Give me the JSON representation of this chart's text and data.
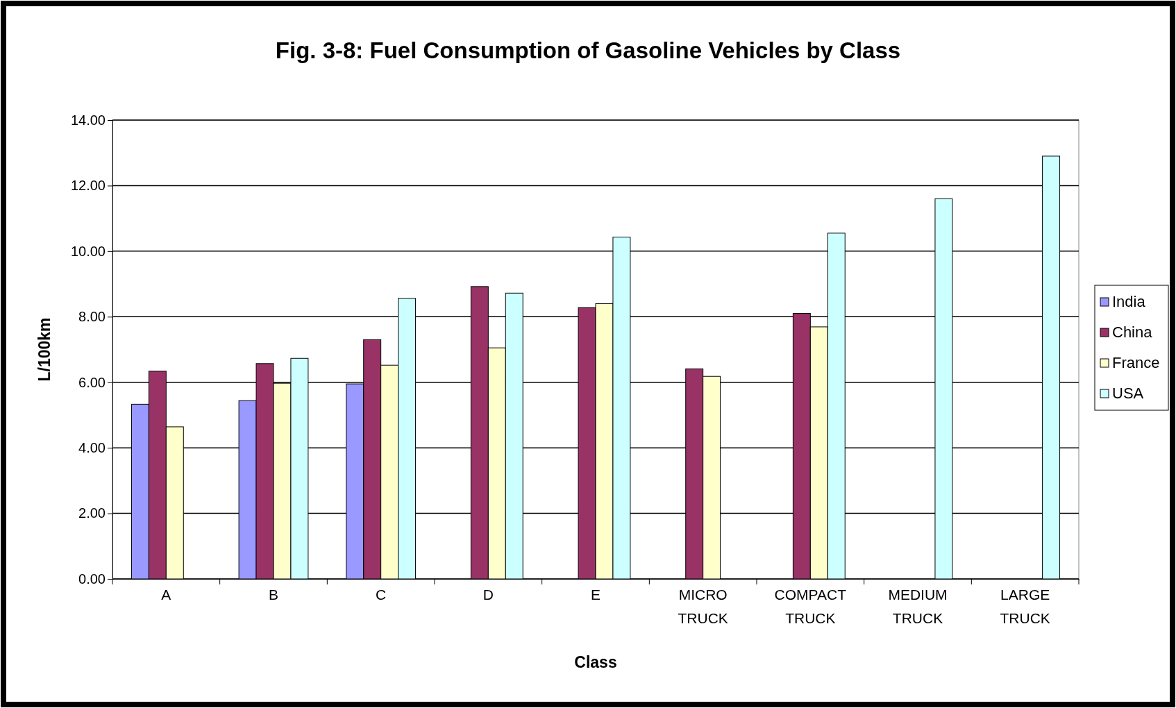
{
  "chart_data": {
    "type": "bar",
    "title": "Fig. 3-8: Fuel Consumption of Gasoline Vehicles by Class",
    "xlabel": "Class",
    "ylabel": "L/100km",
    "categories": [
      "A",
      "B",
      "C",
      "D",
      "E",
      "MICRO TRUCK",
      "COMPACT TRUCK",
      "MEDIUM TRUCK",
      "LARGE TRUCK"
    ],
    "series": [
      {
        "name": "India",
        "color": "#9999ff",
        "values": [
          5.33,
          5.44,
          5.95,
          null,
          null,
          null,
          null,
          null,
          null
        ]
      },
      {
        "name": "China",
        "color": "#993366",
        "values": [
          6.34,
          6.57,
          7.3,
          8.92,
          8.28,
          6.41,
          8.1,
          null,
          null
        ]
      },
      {
        "name": "France",
        "color": "#ffffcc",
        "values": [
          4.64,
          5.97,
          6.52,
          7.05,
          8.4,
          6.18,
          7.69,
          null,
          null
        ]
      },
      {
        "name": "USA",
        "color": "#ccffff",
        "values": [
          null,
          6.73,
          8.56,
          8.72,
          10.43,
          null,
          10.55,
          11.6,
          12.9
        ]
      }
    ],
    "ylim": [
      0,
      14
    ],
    "yticks": [
      {
        "value": 0,
        "label": "0.00"
      },
      {
        "value": 2,
        "label": "2.00"
      },
      {
        "value": 4,
        "label": "4.00"
      },
      {
        "value": 6,
        "label": "6.00"
      },
      {
        "value": 8,
        "label": "8.00"
      },
      {
        "value": 10,
        "label": "10.00"
      },
      {
        "value": 12,
        "label": "12.00"
      },
      {
        "value": 14,
        "label": "14.00"
      }
    ],
    "grid": "y",
    "legend": "right"
  }
}
